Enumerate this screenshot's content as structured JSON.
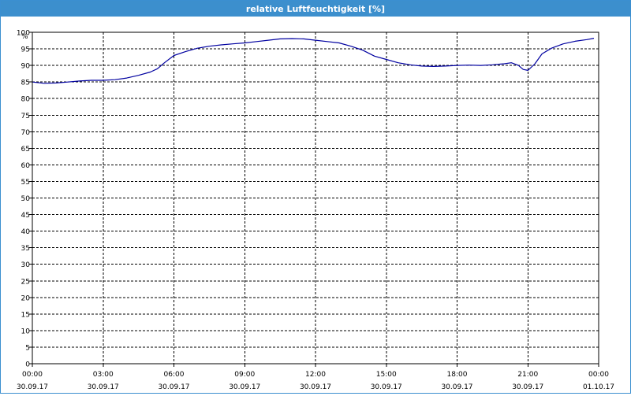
{
  "window": {
    "title": "relative Luftfeuchtigkeit [%]"
  },
  "colors": {
    "titlebar": "#3c8fcd",
    "line": "#0000a0",
    "grid": "#000000"
  },
  "chart_data": {
    "type": "line",
    "title": "relative Luftfeuchtigkeit [%]",
    "ylabel": "%",
    "xlabel": "",
    "ylim": [
      0,
      100
    ],
    "yticks": [
      0,
      5,
      10,
      15,
      20,
      25,
      30,
      35,
      40,
      45,
      50,
      55,
      60,
      65,
      70,
      75,
      80,
      85,
      90,
      95,
      100
    ],
    "xlim_hours": [
      0,
      24
    ],
    "xticks": [
      {
        "hour": 0,
        "time": "00:00",
        "date": "30.09.17"
      },
      {
        "hour": 3,
        "time": "03:00",
        "date": "30.09.17"
      },
      {
        "hour": 6,
        "time": "06:00",
        "date": "30.09.17"
      },
      {
        "hour": 9,
        "time": "09:00",
        "date": "30.09.17"
      },
      {
        "hour": 12,
        "time": "12:00",
        "date": "30.09.17"
      },
      {
        "hour": 15,
        "time": "15:00",
        "date": "30.09.17"
      },
      {
        "hour": 18,
        "time": "18:00",
        "date": "30.09.17"
      },
      {
        "hour": 21,
        "time": "21:00",
        "date": "30.09.17"
      },
      {
        "hour": 24,
        "time": "00:00",
        "date": "01.10.17"
      }
    ],
    "grid": true,
    "grid_style": "dashed",
    "series": [
      {
        "color": "#0000a0",
        "x": [
          0,
          0.5,
          1,
          1.5,
          2,
          2.5,
          3,
          3.5,
          4,
          4.5,
          5,
          5.3,
          5.6,
          6,
          6.5,
          7,
          7.5,
          8,
          8.5,
          9,
          9.5,
          10,
          10.5,
          11,
          11.5,
          12,
          12.5,
          13,
          13.5,
          14,
          14.5,
          15,
          15.5,
          16,
          16.5,
          17,
          17.5,
          18,
          18.5,
          19,
          19.5,
          20,
          20.3,
          20.6,
          20.8,
          21,
          21.3,
          21.6,
          22,
          22.5,
          23,
          23.5,
          23.8
        ],
        "y": [
          85,
          84.6,
          84.7,
          85,
          85.3,
          85.5,
          85.5,
          85.7,
          86.2,
          87,
          88,
          89,
          90.8,
          93,
          94.2,
          95.2,
          95.8,
          96.2,
          96.5,
          96.8,
          97.2,
          97.6,
          98,
          98.1,
          98,
          97.6,
          97.2,
          96.8,
          95.8,
          94.6,
          92.8,
          91.8,
          90.8,
          90.2,
          89.8,
          89.7,
          89.8,
          90,
          90.1,
          90,
          90.2,
          90.5,
          90.8,
          90,
          88.8,
          88.5,
          90.5,
          93.5,
          95.2,
          96.5,
          97.3,
          97.8,
          98.2
        ]
      }
    ]
  }
}
